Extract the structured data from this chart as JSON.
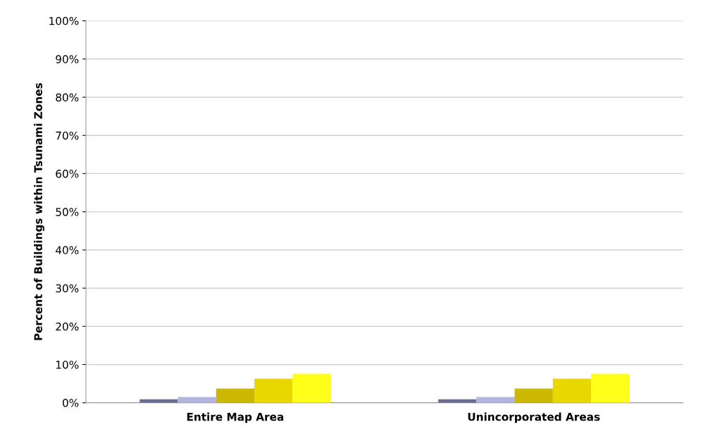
{
  "chart_data": {
    "type": "bar",
    "ylabel": "Percent of Buildings within Tsunami Zones",
    "categories": [
      "Entire Map Area",
      "Unincorporated Areas"
    ],
    "series": [
      {
        "color": "#6b6b8f",
        "values": [
          0.9,
          0.9
        ]
      },
      {
        "color": "#b3b3e0",
        "values": [
          1.5,
          1.5
        ]
      },
      {
        "color": "#ccb800",
        "values": [
          3.7,
          3.7
        ]
      },
      {
        "color": "#e8d800",
        "values": [
          6.3,
          6.3
        ]
      },
      {
        "color": "#ffff1a",
        "values": [
          7.6,
          7.6
        ]
      }
    ],
    "ylim": [
      0,
      100
    ],
    "yticks": [
      {
        "value": 0,
        "label": "0%"
      },
      {
        "value": 10,
        "label": "10%"
      },
      {
        "value": 20,
        "label": "20%"
      },
      {
        "value": 30,
        "label": "30%"
      },
      {
        "value": 40,
        "label": "40%"
      },
      {
        "value": 50,
        "label": "50%"
      },
      {
        "value": 60,
        "label": "60%"
      },
      {
        "value": 70,
        "label": "70%"
      },
      {
        "value": 80,
        "label": "80%"
      },
      {
        "value": 90,
        "label": "90%"
      },
      {
        "value": 100,
        "label": "100%"
      }
    ],
    "grid": "y",
    "legend": false
  }
}
